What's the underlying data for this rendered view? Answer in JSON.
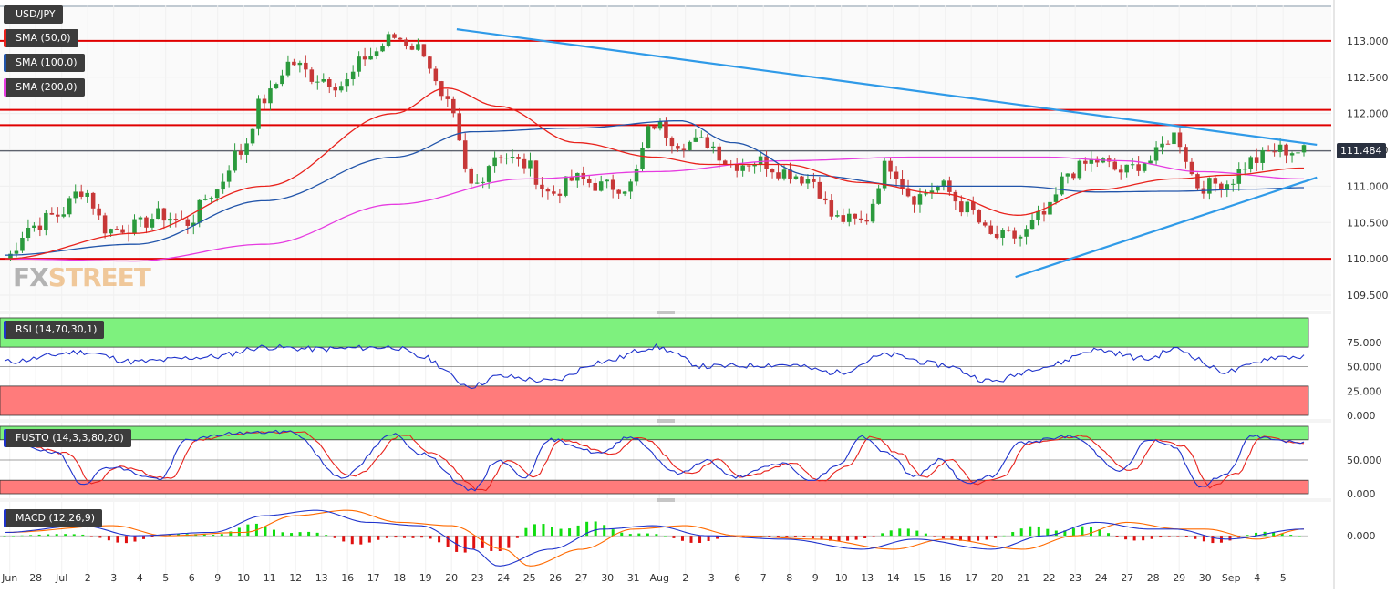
{
  "header": {
    "symbol": "USD/JPY",
    "last_price": "111.484"
  },
  "colors": {
    "sma50": "#e8221c",
    "sma100": "#2255aa",
    "sma200": "#e63be0",
    "trendline": "#2f9ae8",
    "hline": "#e00000",
    "bull": "#2b9a3d",
    "bear": "#c73838",
    "rsi": "#1f33cc",
    "macd": "#1f33cc",
    "signal": "#ff6a00",
    "fast_k": "#1f33cc",
    "slow_d": "#e8221c",
    "band_green": "#7ef17e",
    "band_red": "#ff7b7b"
  },
  "logo": {
    "part1": "FX",
    "part2": "STREET"
  },
  "chart_data": [
    {
      "type": "candlestick",
      "title": "USD/JPY",
      "ylim": [
        109.3,
        113.5
      ],
      "y_ticks": [
        "113.000",
        "112.500",
        "112.000",
        "111.500",
        "111.000",
        "110.500",
        "110.000",
        "109.500"
      ],
      "x_tick_labels": [
        "Jun",
        "28",
        "Jul",
        "2",
        "3",
        "4",
        "5",
        "6",
        "9",
        "10",
        "11",
        "12",
        "13",
        "16",
        "17",
        "18",
        "19",
        "20",
        "23",
        "24",
        "25",
        "26",
        "27",
        "30",
        "31",
        "Aug",
        "2",
        "3",
        "6",
        "7",
        "8",
        "9",
        "10",
        "13",
        "14",
        "15",
        "16",
        "17",
        "20",
        "21",
        "22",
        "23",
        "24",
        "27",
        "28",
        "29",
        "30",
        "Sep",
        "4",
        "5"
      ],
      "legend": [
        {
          "name": "SMA (50,0)",
          "color": "#e8221c"
        },
        {
          "name": "SMA (100,0)",
          "color": "#2255aa"
        },
        {
          "name": "SMA (200,0)",
          "color": "#e63be0"
        }
      ],
      "horizontal_levels": [
        113.0,
        112.05,
        111.84,
        110.0
      ],
      "close_anchors": [
        [
          0,
          110.0
        ],
        [
          1,
          110.45
        ],
        [
          2,
          110.6
        ],
        [
          3,
          110.95
        ],
        [
          4,
          110.4
        ],
        [
          5,
          110.45
        ],
        [
          6,
          110.6
        ],
        [
          7,
          110.5
        ],
        [
          8,
          110.9
        ],
        [
          9,
          111.45
        ],
        [
          10,
          112.2
        ],
        [
          11,
          112.7
        ],
        [
          12,
          112.5
        ],
        [
          13,
          112.4
        ],
        [
          14,
          112.8
        ],
        [
          15,
          113.05
        ],
        [
          16,
          112.9
        ],
        [
          17,
          112.1
        ],
        [
          18,
          111.0
        ],
        [
          19,
          111.45
        ],
        [
          20,
          111.3
        ],
        [
          21,
          110.9
        ],
        [
          22,
          111.1
        ],
        [
          23,
          111.0
        ],
        [
          24,
          111.0
        ],
        [
          25,
          111.85
        ],
        [
          26,
          111.6
        ],
        [
          27,
          111.6
        ],
        [
          28,
          111.3
        ],
        [
          29,
          111.35
        ],
        [
          30,
          111.2
        ],
        [
          31,
          111.1
        ],
        [
          32,
          110.55
        ],
        [
          33,
          110.5
        ],
        [
          34,
          111.3
        ],
        [
          35,
          110.85
        ],
        [
          36,
          111.0
        ],
        [
          37,
          110.7
        ],
        [
          38,
          110.3
        ],
        [
          39,
          110.3
        ],
        [
          40,
          110.6
        ],
        [
          41,
          111.2
        ],
        [
          42,
          111.35
        ],
        [
          43,
          111.2
        ],
        [
          44,
          111.35
        ],
        [
          45,
          111.7
        ],
        [
          46,
          111.0
        ],
        [
          47,
          111.05
        ],
        [
          48,
          111.35
        ],
        [
          49,
          111.5
        ],
        [
          50,
          111.48
        ]
      ],
      "sma50_anchors": [
        [
          0,
          110.0
        ],
        [
          5,
          110.35
        ],
        [
          10,
          111.0
        ],
        [
          15,
          112.0
        ],
        [
          17,
          112.35
        ],
        [
          19,
          112.1
        ],
        [
          22,
          111.6
        ],
        [
          25,
          111.4
        ],
        [
          27,
          111.3
        ],
        [
          30,
          111.3
        ],
        [
          33,
          111.05
        ],
        [
          36,
          110.9
        ],
        [
          39,
          110.6
        ],
        [
          42,
          110.95
        ],
        [
          45,
          111.1
        ],
        [
          47,
          111.15
        ],
        [
          50,
          111.25
        ]
      ],
      "sma100_anchors": [
        [
          0,
          110.05
        ],
        [
          5,
          110.2
        ],
        [
          10,
          110.8
        ],
        [
          15,
          111.4
        ],
        [
          18,
          111.75
        ],
        [
          22,
          111.8
        ],
        [
          26,
          111.9
        ],
        [
          28,
          111.6
        ],
        [
          31,
          111.15
        ],
        [
          35,
          111.0
        ],
        [
          39,
          111.0
        ],
        [
          42,
          110.92
        ],
        [
          45,
          110.93
        ],
        [
          48,
          110.96
        ],
        [
          50,
          110.98
        ]
      ],
      "sma200_anchors": [
        [
          0,
          110.0
        ],
        [
          5,
          109.97
        ],
        [
          10,
          110.2
        ],
        [
          15,
          110.75
        ],
        [
          20,
          111.1
        ],
        [
          25,
          111.2
        ],
        [
          30,
          111.35
        ],
        [
          35,
          111.4
        ],
        [
          40,
          111.4
        ],
        [
          43,
          111.35
        ],
        [
          46,
          111.2
        ],
        [
          50,
          111.1
        ]
      ],
      "trendlines": [
        {
          "from": [
            17.4,
            113.16
          ],
          "to": [
            50.5,
            111.57
          ]
        },
        {
          "from": [
            38.9,
            109.75
          ],
          "to": [
            50.5,
            111.12
          ]
        }
      ]
    },
    {
      "type": "line",
      "title": "RSI (14,70,30,1)",
      "ylim": [
        0,
        100
      ],
      "y_ticks": [
        "75.000",
        "50.000",
        "25.000",
        "0.000"
      ],
      "bands": {
        "upper": 70,
        "lower": 30
      },
      "values_anchors": [
        [
          0,
          55
        ],
        [
          3,
          65
        ],
        [
          5,
          55
        ],
        [
          8,
          60
        ],
        [
          10,
          70
        ],
        [
          12,
          68
        ],
        [
          15,
          70
        ],
        [
          16,
          60
        ],
        [
          18,
          30
        ],
        [
          19,
          40
        ],
        [
          21,
          35
        ],
        [
          23,
          55
        ],
        [
          25,
          70
        ],
        [
          27,
          50
        ],
        [
          30,
          52
        ],
        [
          32,
          44
        ],
        [
          34,
          62
        ],
        [
          36,
          52
        ],
        [
          38,
          35
        ],
        [
          40,
          50
        ],
        [
          42,
          67
        ],
        [
          44,
          58
        ],
        [
          45,
          68
        ],
        [
          47,
          45
        ],
        [
          49,
          60
        ],
        [
          50,
          60
        ]
      ]
    },
    {
      "type": "line",
      "title": "FUSTO (14,3,3,80,20)",
      "ylim": [
        0,
        100
      ],
      "y_ticks": [
        "50.000",
        "0.000"
      ],
      "bands": {
        "upper": 80,
        "lower": 20
      },
      "values_anchors": [
        [
          0,
          82
        ],
        [
          2,
          60
        ],
        [
          3,
          15
        ],
        [
          4,
          40
        ],
        [
          6,
          22
        ],
        [
          7,
          80
        ],
        [
          9,
          90
        ],
        [
          11,
          92
        ],
        [
          13,
          25
        ],
        [
          15,
          88
        ],
        [
          16,
          60
        ],
        [
          18,
          5
        ],
        [
          19,
          50
        ],
        [
          20,
          25
        ],
        [
          21,
          80
        ],
        [
          23,
          60
        ],
        [
          24,
          85
        ],
        [
          26,
          30
        ],
        [
          27,
          50
        ],
        [
          28,
          25
        ],
        [
          30,
          45
        ],
        [
          31,
          18
        ],
        [
          32,
          40
        ],
        [
          33,
          85
        ],
        [
          34,
          60
        ],
        [
          35,
          25
        ],
        [
          36,
          50
        ],
        [
          37,
          15
        ],
        [
          38,
          25
        ],
        [
          39,
          75
        ],
        [
          41,
          85
        ],
        [
          43,
          35
        ],
        [
          44,
          80
        ],
        [
          45,
          70
        ],
        [
          46,
          10
        ],
        [
          47,
          30
        ],
        [
          48,
          85
        ],
        [
          50,
          75
        ]
      ]
    },
    {
      "type": "line",
      "title": "MACD (12,26,9)",
      "ylim": [
        -0.5,
        0.45
      ],
      "y_ticks": [
        "0.000"
      ],
      "macd_anchors": [
        [
          0,
          0.05
        ],
        [
          3,
          0.15
        ],
        [
          5,
          0.0
        ],
        [
          8,
          0.05
        ],
        [
          10,
          0.3
        ],
        [
          12,
          0.38
        ],
        [
          14,
          0.2
        ],
        [
          16,
          0.15
        ],
        [
          18,
          -0.2
        ],
        [
          19,
          -0.45
        ],
        [
          21,
          -0.2
        ],
        [
          23,
          0.1
        ],
        [
          25,
          0.15
        ],
        [
          27,
          0.0
        ],
        [
          30,
          -0.05
        ],
        [
          33,
          -0.2
        ],
        [
          35,
          -0.05
        ],
        [
          38,
          -0.2
        ],
        [
          40,
          0.0
        ],
        [
          42,
          0.2
        ],
        [
          44,
          0.1
        ],
        [
          45,
          0.1
        ],
        [
          47,
          -0.05
        ],
        [
          50,
          0.1
        ]
      ]
    }
  ]
}
